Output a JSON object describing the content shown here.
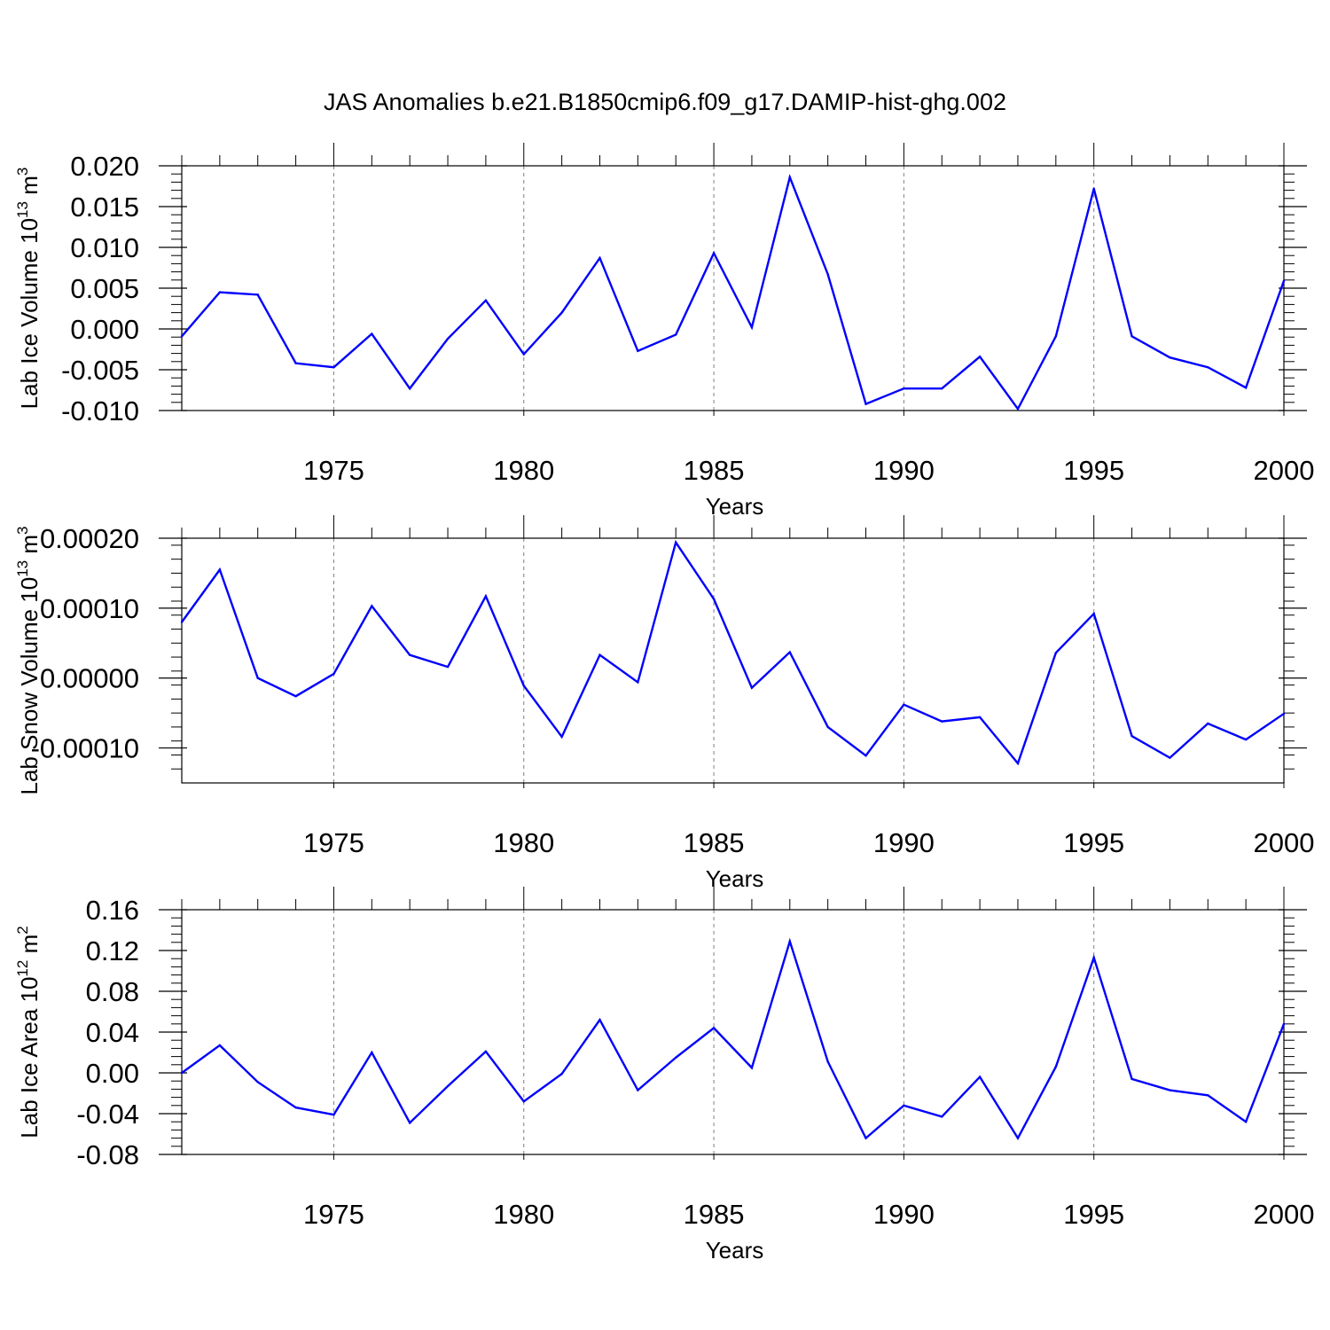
{
  "title": "JAS Anomalies b.e21.B1850cmip6.f09_g17.DAMIP-hist-ghg.002",
  "colors": {
    "line": "#0000ff",
    "axis": "#000000",
    "grid": "#808080"
  },
  "chart_data": [
    {
      "type": "line",
      "ylabel_main": "Lab Ice Volume 10",
      "ylabel_exp": "13",
      "ylabel_unit": " m",
      "ylabel_unit_exp": "3",
      "xlabel": "Years",
      "xlim": [
        1971,
        2000
      ],
      "ylim": [
        -0.01,
        0.02
      ],
      "yticks": [
        -0.01,
        -0.005,
        0.0,
        0.005,
        0.01,
        0.015,
        0.02
      ],
      "ytick_labels": [
        "-0.010",
        "-0.005",
        "0.000",
        "0.005",
        "0.010",
        "0.015",
        "0.020"
      ],
      "xticks": [
        1975,
        1980,
        1985,
        1990,
        1995,
        2000
      ],
      "xtick_labels": [
        "1975",
        "1980",
        "1985",
        "1990",
        "1995",
        "2000"
      ],
      "x": [
        1971,
        1972,
        1973,
        1974,
        1975,
        1976,
        1977,
        1978,
        1979,
        1980,
        1981,
        1982,
        1983,
        1984,
        1985,
        1986,
        1987,
        1988,
        1989,
        1990,
        1991,
        1992,
        1993,
        1994,
        1995,
        1996,
        1997,
        1998,
        1999,
        2000
      ],
      "values": [
        -0.0009,
        0.0045,
        0.0042,
        -0.0042,
        -0.0047,
        -0.0006,
        -0.0073,
        -0.0012,
        0.0035,
        -0.0031,
        0.002,
        0.0087,
        -0.0027,
        -0.0007,
        0.0093,
        0.0002,
        0.0186,
        0.0067,
        -0.0092,
        -0.0073,
        -0.0073,
        -0.0034,
        -0.0098,
        -0.0009,
        0.0172,
        -0.0009,
        -0.0035,
        -0.0047,
        -0.0072,
        0.0059
      ]
    },
    {
      "type": "line",
      "ylabel_main": "Lab Snow Volume 10",
      "ylabel_exp": "13",
      "ylabel_unit": " m",
      "ylabel_unit_exp": "3",
      "xlabel": "Years",
      "xlim": [
        1971,
        2000
      ],
      "ylim": [
        -0.00015,
        0.0002
      ],
      "yticks": [
        -0.0001,
        0.0,
        0.0001,
        0.0002
      ],
      "ytick_labels": [
        "-0.00010",
        "0.00000",
        "0.00010",
        "0.00020"
      ],
      "xticks": [
        1975,
        1980,
        1985,
        1990,
        1995,
        2000
      ],
      "xtick_labels": [
        "1975",
        "1980",
        "1985",
        "1990",
        "1995",
        "2000"
      ],
      "x": [
        1971,
        1972,
        1973,
        1974,
        1975,
        1976,
        1977,
        1978,
        1979,
        1980,
        1981,
        1982,
        1983,
        1984,
        1985,
        1986,
        1987,
        1988,
        1989,
        1990,
        1991,
        1992,
        1993,
        1994,
        1995,
        1996,
        1997,
        1998,
        1999,
        2000
      ],
      "values": [
        8e-05,
        0.000155,
        0.0,
        -2.6e-05,
        6e-06,
        0.000103,
        3.3e-05,
        1.6e-05,
        0.000117,
        -1.1e-05,
        -8.4e-05,
        3.3e-05,
        -6e-06,
        0.000194,
        0.000113,
        -1.4e-05,
        3.7e-05,
        -7e-05,
        -0.000111,
        -3.8e-05,
        -6.2e-05,
        -5.6e-05,
        -0.000122,
        3.6e-05,
        9.2e-05,
        -8.3e-05,
        -0.000114,
        -6.5e-05,
        -8.8e-05,
        -5.1e-05
      ]
    },
    {
      "type": "line",
      "ylabel_main": "Lab Ice Area 10",
      "ylabel_exp": "12",
      "ylabel_unit": " m",
      "ylabel_unit_exp": "2",
      "xlabel": "Years",
      "xlim": [
        1971,
        2000
      ],
      "ylim": [
        -0.08,
        0.16
      ],
      "yticks": [
        -0.08,
        -0.04,
        0.0,
        0.04,
        0.08,
        0.12,
        0.16
      ],
      "ytick_labels": [
        "-0.08",
        "-0.04",
        "0.00",
        "0.04",
        "0.08",
        "0.12",
        "0.16"
      ],
      "xticks": [
        1975,
        1980,
        1985,
        1990,
        1995,
        2000
      ],
      "xtick_labels": [
        "1975",
        "1980",
        "1985",
        "1990",
        "1995",
        "2000"
      ],
      "x": [
        1971,
        1972,
        1973,
        1974,
        1975,
        1976,
        1977,
        1978,
        1979,
        1980,
        1981,
        1982,
        1983,
        1984,
        1985,
        1986,
        1987,
        1988,
        1989,
        1990,
        1991,
        1992,
        1993,
        1994,
        1995,
        1996,
        1997,
        1998,
        1999,
        2000
      ],
      "values": [
        0.0,
        0.027,
        -0.009,
        -0.034,
        -0.041,
        0.02,
        -0.049,
        -0.013,
        0.021,
        -0.028,
        -0.001,
        0.052,
        -0.017,
        0.015,
        0.044,
        0.005,
        0.129,
        0.011,
        -0.064,
        -0.032,
        -0.043,
        -0.004,
        -0.064,
        0.006,
        0.113,
        -0.006,
        -0.017,
        -0.022,
        -0.048,
        0.048
      ]
    }
  ]
}
